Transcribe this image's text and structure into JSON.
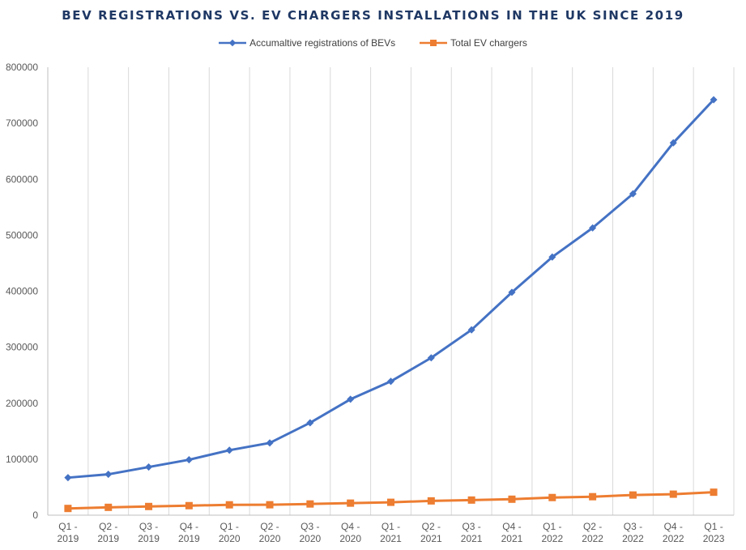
{
  "chart_data": {
    "type": "line",
    "title": "BEV REGISTRATIONS VS. EV CHARGERS INSTALLATIONS IN THE UK SINCE 2019",
    "xlabel": "",
    "ylabel": "",
    "ylim": [
      0,
      800000
    ],
    "y_ticks": [
      "0",
      "100000",
      "200000",
      "300000",
      "400000",
      "500000",
      "600000",
      "700000",
      "800000"
    ],
    "categories": [
      [
        "Q1 -",
        "2019"
      ],
      [
        "Q2 -",
        "2019"
      ],
      [
        "Q3 -",
        "2019"
      ],
      [
        "Q4 -",
        "2019"
      ],
      [
        "Q1 -",
        "2020"
      ],
      [
        "Q2 -",
        "2020"
      ],
      [
        "Q3 -",
        "2020"
      ],
      [
        "Q4 -",
        "2020"
      ],
      [
        "Q1 -",
        "2021"
      ],
      [
        "Q2 -",
        "2021"
      ],
      [
        "Q3 -",
        "2021"
      ],
      [
        "Q4 -",
        "2021"
      ],
      [
        "Q1 -",
        "2022"
      ],
      [
        "Q2 -",
        "2022"
      ],
      [
        "Q3 -",
        "2022"
      ],
      [
        "Q4 -",
        "2022"
      ],
      [
        "Q1 -",
        "2023"
      ]
    ],
    "grid": "vertical",
    "legend_position": "top",
    "series": [
      {
        "name": "Accumaltive registrations of BEVs",
        "color": "#4472c4",
        "marker": "diamond",
        "values": [
          67000,
          73000,
          86000,
          99000,
          116000,
          129000,
          165000,
          207000,
          239000,
          281000,
          331000,
          398000,
          461000,
          513000,
          574000,
          665000,
          742000
        ]
      },
      {
        "name": "Total EV chargers",
        "color": "#ed7d31",
        "marker": "square",
        "values": [
          12000,
          14000,
          15500,
          17000,
          18500,
          18600,
          20000,
          21500,
          23000,
          25500,
          27000,
          28500,
          31500,
          33000,
          36000,
          37500,
          41000
        ]
      }
    ]
  }
}
